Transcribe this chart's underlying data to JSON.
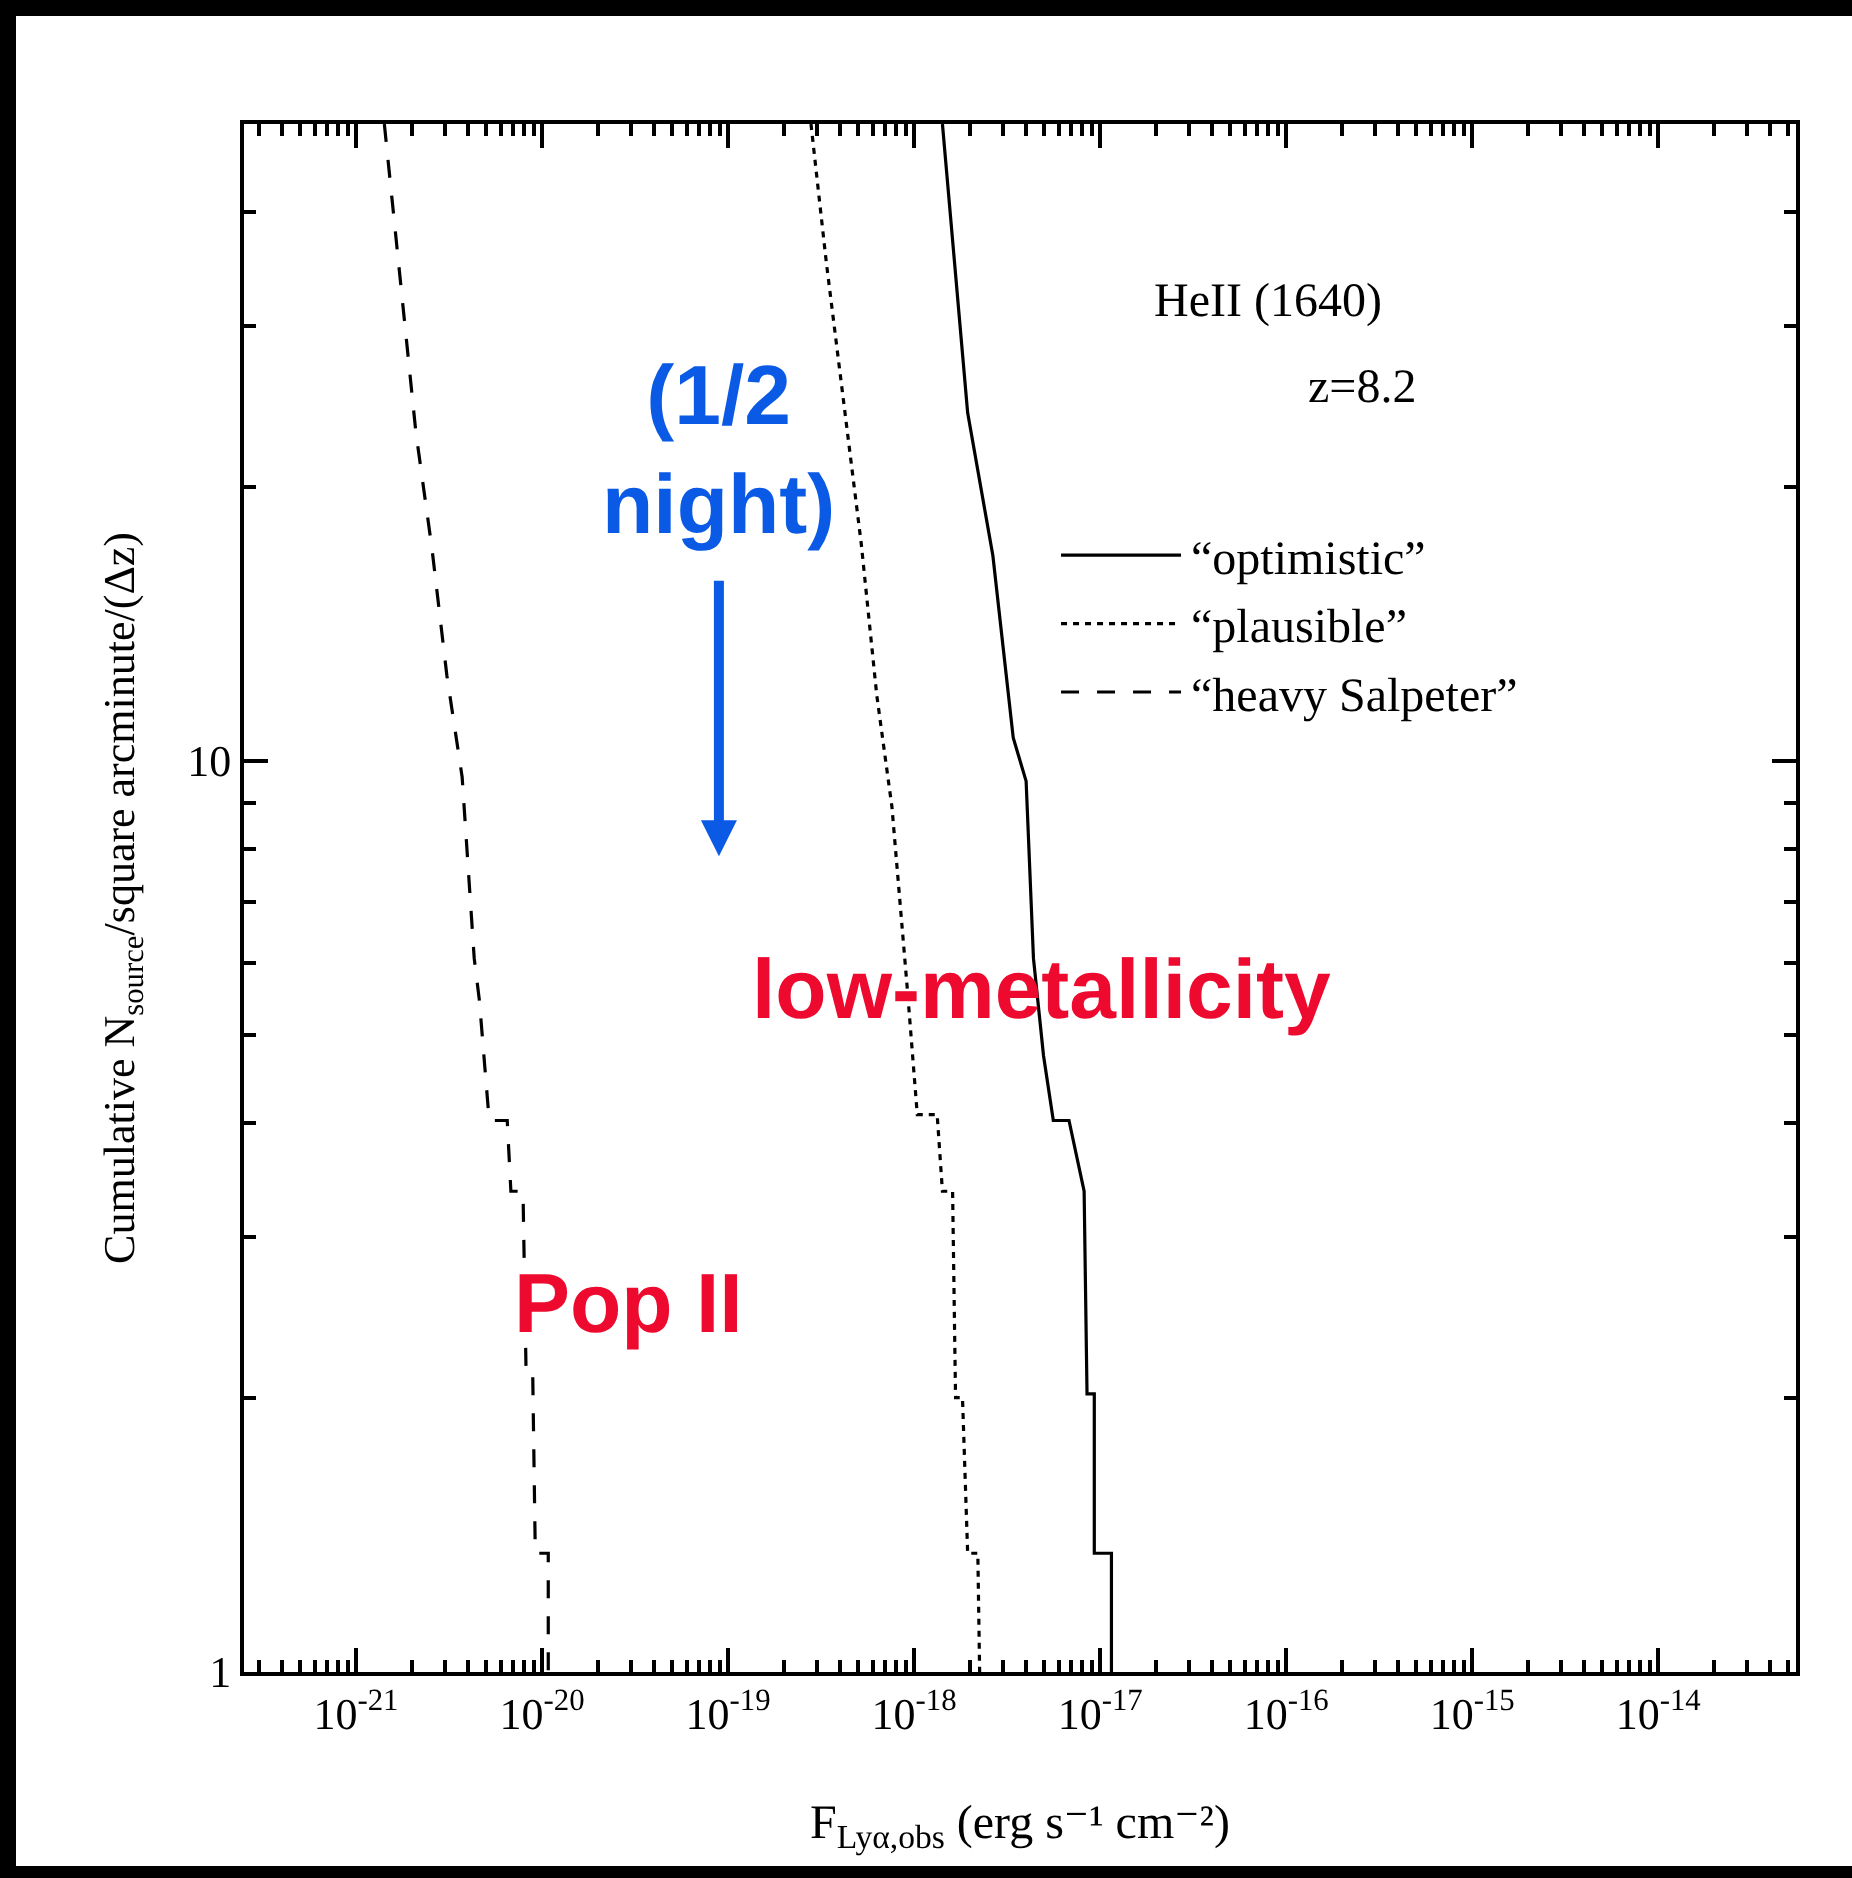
{
  "chart_data": {
    "type": "line",
    "xlabel": "F$_{Lyα,obs}$ (erg s⁻¹ cm⁻²)",
    "ylabel": "Cumulative N$_{source}$/square arcminute/(Δz)",
    "log": "xy",
    "grid": false,
    "legend": "right",
    "marker": "none",
    "xlim": [
      2.5e-22,
      5.5e-14
    ],
    "ylim": [
      1,
      50
    ],
    "xticks": [
      {
        "value": 1e-21,
        "label": "10$^{-21}$"
      },
      {
        "value": 1e-20,
        "label": "10$^{-20}$"
      },
      {
        "value": 1e-19,
        "label": "10$^{-19}$"
      },
      {
        "value": 1e-18,
        "label": "10$^{-18}$"
      },
      {
        "value": 1e-17,
        "label": "10$^{-17}$"
      },
      {
        "value": 1e-16,
        "label": "10$^{-16}$"
      },
      {
        "value": 1e-15,
        "label": "10$^{-15}$"
      },
      {
        "value": 1e-14,
        "label": "10$^{-14}$"
      }
    ],
    "yticks": [
      1,
      10
    ],
    "annotations": [
      "HeII (1640)",
      "z=8.2",
      "(1/2\nnight)",
      "low-metallicity",
      "Pop II"
    ],
    "series": [
      {
        "name": "“optimistic”",
        "color": "#000000",
        "line_style": "solid",
        "x": [
          1.42e-18,
          1.94e-18,
          2.65e-18,
          3.41e-18,
          4e-18,
          4.38e-18,
          4.96e-18,
          5.6e-18,
          6.8e-18,
          8.2e-18,
          8.5e-18,
          9.3e-18,
          9.3e-18,
          1.15e-17,
          1.15e-17
        ],
        "values": [
          50,
          24.1,
          16.8,
          10.6,
          9.5,
          6.07,
          4.75,
          4.03,
          4.03,
          3.37,
          2.02,
          2.02,
          1.35,
          1.35,
          1
        ]
      },
      {
        "name": "“plausible”",
        "color": "#000000",
        "line_style": "dotted",
        "x": [
          2.79e-19,
          3.37e-19,
          5.2e-19,
          6.3e-19,
          7.6e-19,
          9.2e-19,
          1.04e-18,
          1.33e-18,
          1.42e-18,
          1.61e-18,
          1.67e-18,
          1.82e-18,
          1.94e-18,
          2.2e-18,
          2.25e-18
        ],
        "values": [
          50,
          35.3,
          17.3,
          11.8,
          8.9,
          5.61,
          4.09,
          4.09,
          3.37,
          3.37,
          2.0,
          2.0,
          1.35,
          1.35,
          1
        ]
      },
      {
        "name": "“heavy Salpeter”",
        "color": "#000000",
        "line_style": "dashed",
        "x": [
          1.42e-21,
          2.1e-21,
          2.56e-21,
          3.08e-21,
          3.72e-21,
          4.32e-21,
          4.6e-21,
          5.2e-21,
          6.5e-21,
          6.8e-21,
          7.9e-21,
          8.2e-21,
          8.9e-21,
          9.2e-21,
          1.08e-20,
          1.08e-20
        ],
        "values": [
          50,
          22.9,
          17.1,
          12.4,
          9.6,
          6.07,
          5.47,
          4.03,
          4.03,
          3.37,
          3.37,
          2.16,
          2.16,
          1.35,
          1.35,
          1
        ]
      }
    ]
  }
}
